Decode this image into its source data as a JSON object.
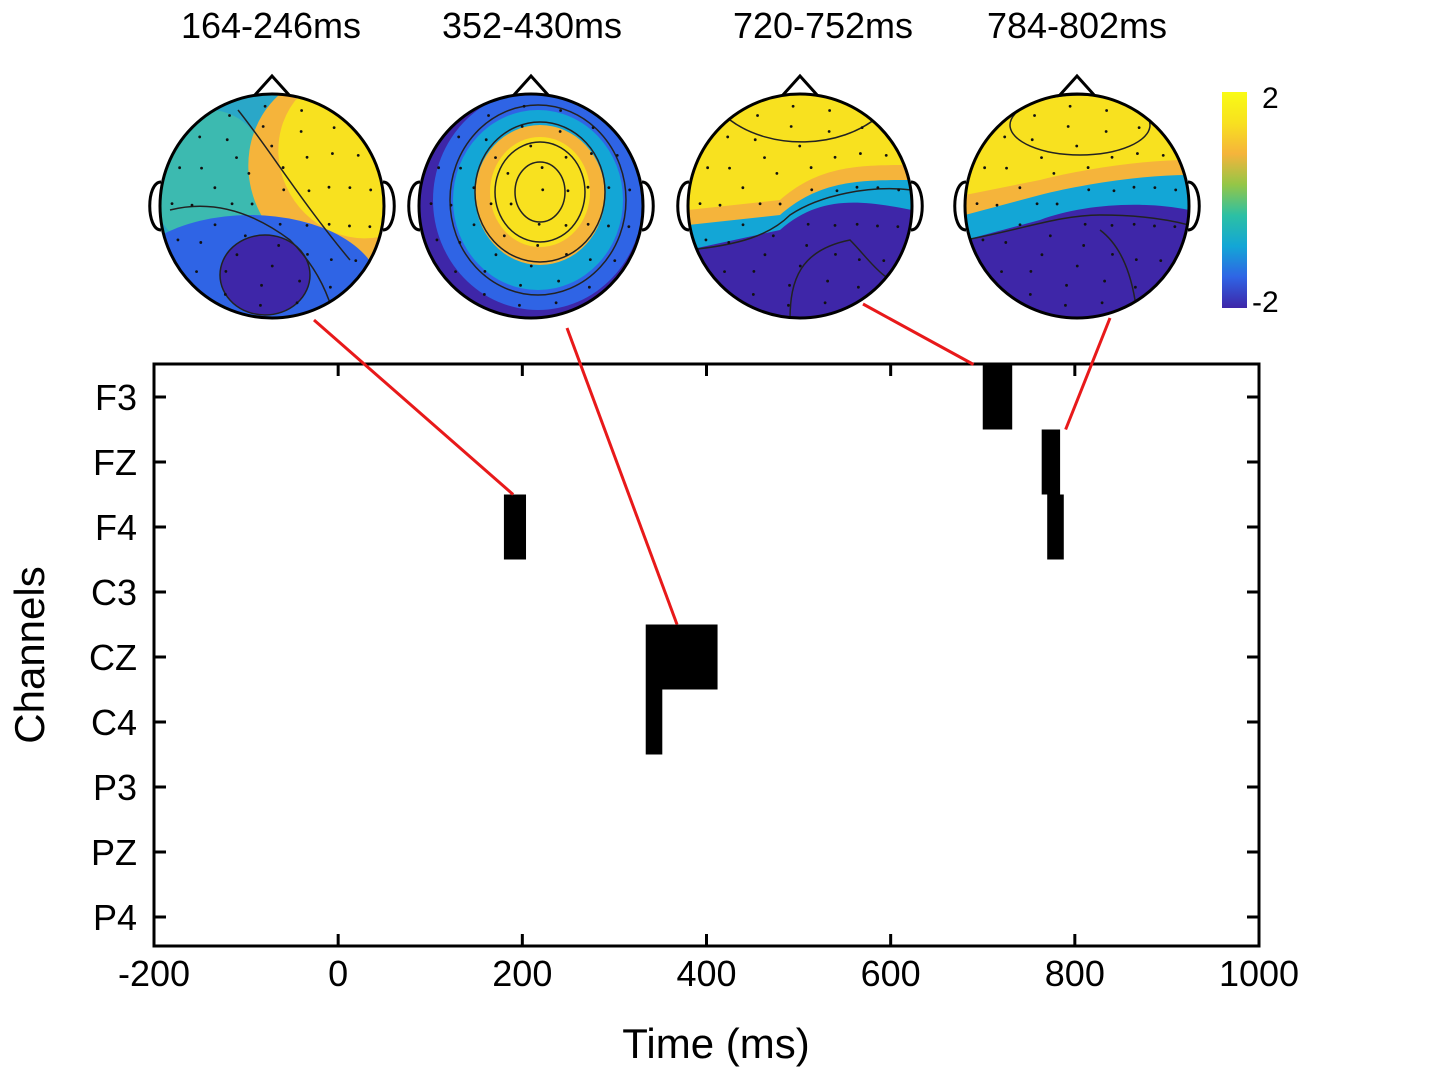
{
  "chart_data": {
    "type": "heatmap",
    "title": "",
    "xlabel": "Time (ms)",
    "ylabel": "Channels",
    "xlim": [
      -200,
      1000
    ],
    "xticks": [
      -200,
      0,
      200,
      400,
      600,
      800,
      1000
    ],
    "channels": [
      "F3",
      "FZ",
      "F4",
      "C3",
      "CZ",
      "C4",
      "P3",
      "PZ",
      "P4"
    ],
    "grid": false,
    "significant_segments": [
      {
        "channel": "F4",
        "start": 180,
        "end": 204
      },
      {
        "channel": "CZ",
        "start": 334,
        "end": 412
      },
      {
        "channel": "C4",
        "start": 334,
        "end": 352
      },
      {
        "channel": "F3",
        "start": 700,
        "end": 732
      },
      {
        "channel": "FZ",
        "start": 764,
        "end": 784
      },
      {
        "channel": "F4",
        "start": 770,
        "end": 788
      }
    ],
    "topographies": [
      {
        "title": "164-246ms",
        "connector_time": 190,
        "connector_channel": "F4"
      },
      {
        "title": "352-430ms",
        "connector_time": 368,
        "connector_channel": "CZ"
      },
      {
        "title": "720-752ms",
        "connector_time": 690,
        "connector_channel": "F3"
      },
      {
        "title": "784-802ms",
        "connector_time": 790,
        "connector_channel": "FZ"
      }
    ],
    "colorbar": {
      "max_label": "2",
      "min_label": "-2",
      "range": [
        -2,
        2
      ]
    }
  },
  "colors": {
    "segment": "#000000",
    "connector": "#e8191a",
    "colormap": [
      "#3e26a8",
      "#2f64e5",
      "#13a6d6",
      "#2cc0a4",
      "#94c647",
      "#f5b43b",
      "#f8e11f",
      "#f9fb15"
    ]
  }
}
